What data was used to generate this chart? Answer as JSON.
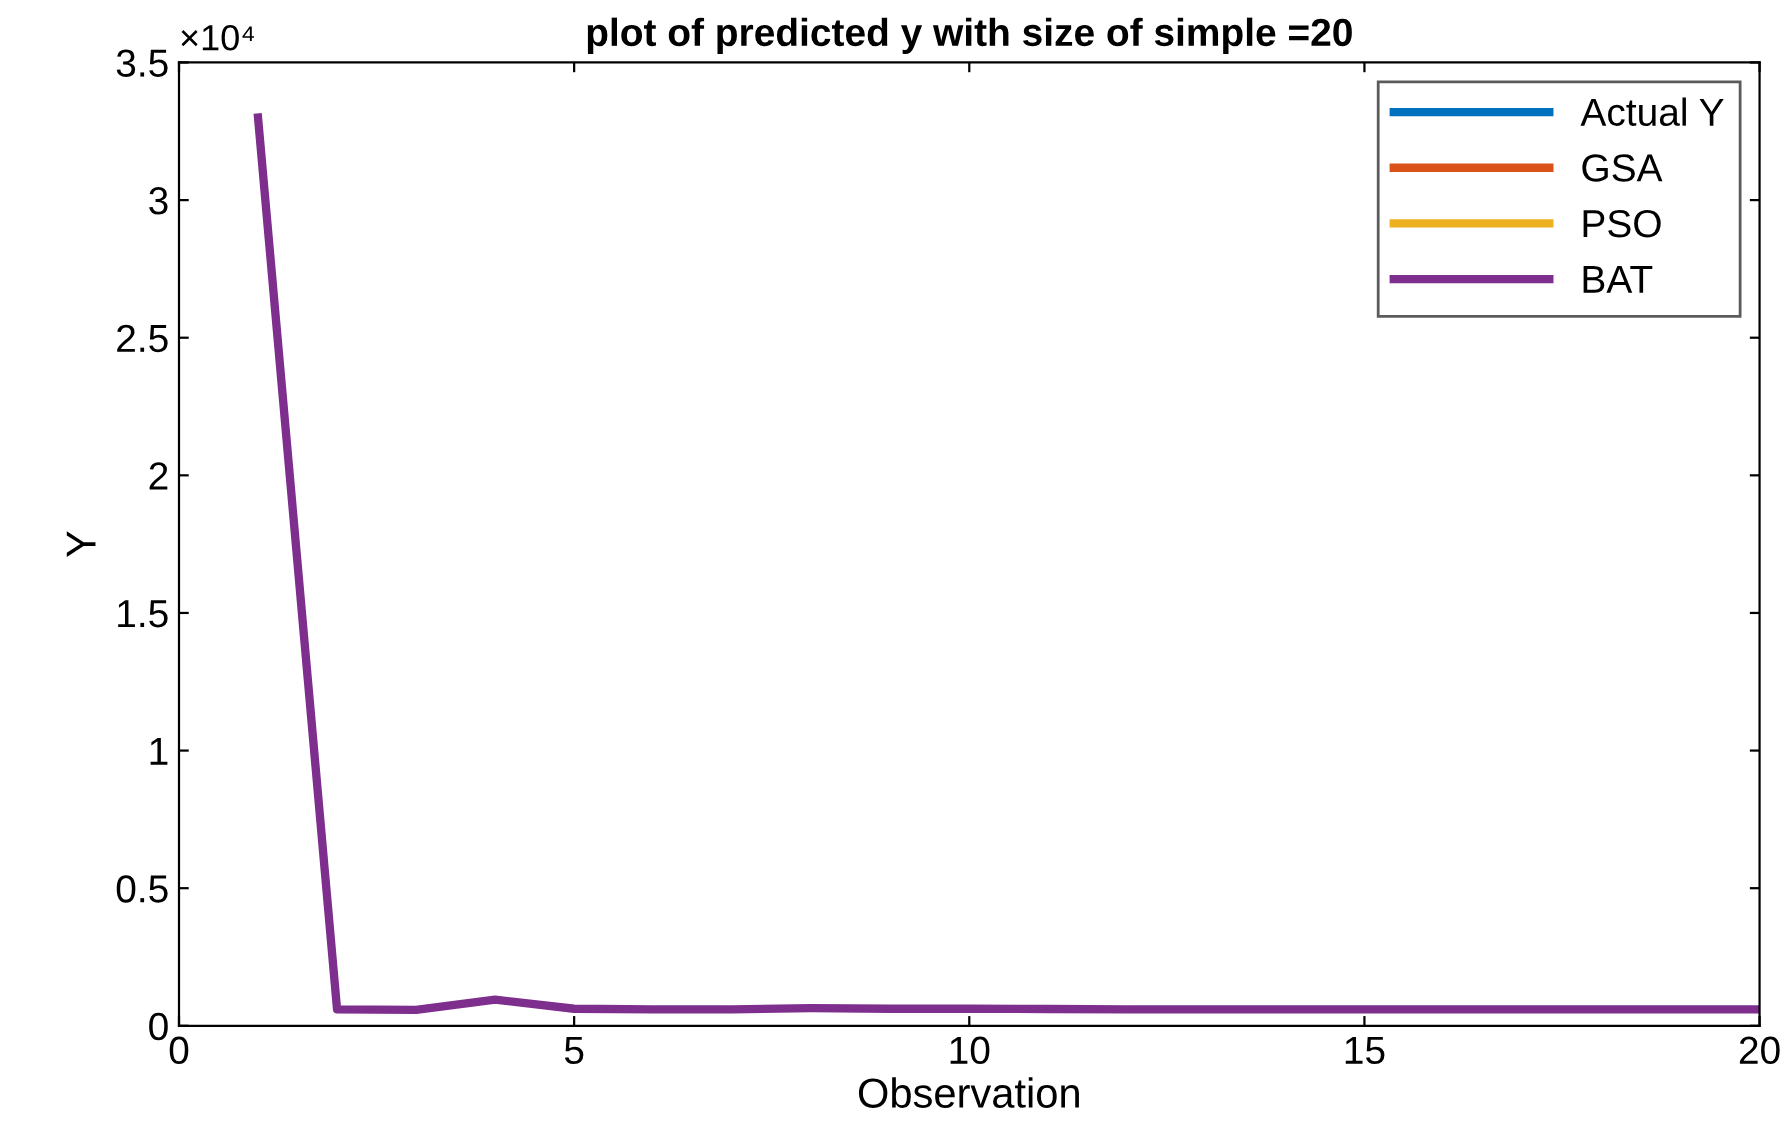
{
  "chart_data": {
    "type": "line",
    "title": "plot of predicted y with size of simple =20",
    "xlabel": "Observation",
    "ylabel": "Y",
    "x": [
      1,
      2,
      3,
      4,
      5,
      6,
      7,
      8,
      9,
      10,
      11,
      12,
      13,
      14,
      15,
      16,
      17,
      18,
      19,
      20
    ],
    "series": [
      {
        "name": "Actual Y",
        "color": "#0072bd",
        "values": [
          null,
          null,
          null,
          null,
          null,
          null,
          null,
          null,
          null,
          null,
          null,
          null,
          null,
          null,
          null,
          null,
          null,
          null,
          null,
          null
        ]
      },
      {
        "name": "GSA",
        "color": "#d95319",
        "values": [
          null,
          null,
          null,
          null,
          null,
          null,
          null,
          null,
          null,
          null,
          null,
          null,
          null,
          null,
          null,
          null,
          null,
          null,
          null,
          null
        ]
      },
      {
        "name": "PSO",
        "color": "#edb120",
        "values": [
          null,
          null,
          null,
          null,
          null,
          null,
          null,
          null,
          null,
          null,
          null,
          null,
          null,
          null,
          null,
          null,
          null,
          null,
          null,
          null
        ]
      },
      {
        "name": "BAT",
        "color": "#7e2f8e",
        "values": [
          3.3,
          0.06,
          0.058,
          0.095,
          0.062,
          0.06,
          0.06,
          0.064,
          0.062,
          0.062,
          0.061,
          0.06,
          0.06,
          0.06,
          0.06,
          0.06,
          0.06,
          0.06,
          0.06,
          0.06
        ]
      }
    ],
    "xlim": [
      0,
      20
    ],
    "xticks": [
      0,
      5,
      10,
      15,
      20
    ],
    "ylim": [
      0,
      3.5
    ],
    "yticks": [
      0,
      0.5,
      1,
      1.5,
      2,
      2.5,
      3,
      3.5
    ],
    "annotations": [
      "×10⁴"
    ],
    "legend": "top right",
    "grid": false
  }
}
